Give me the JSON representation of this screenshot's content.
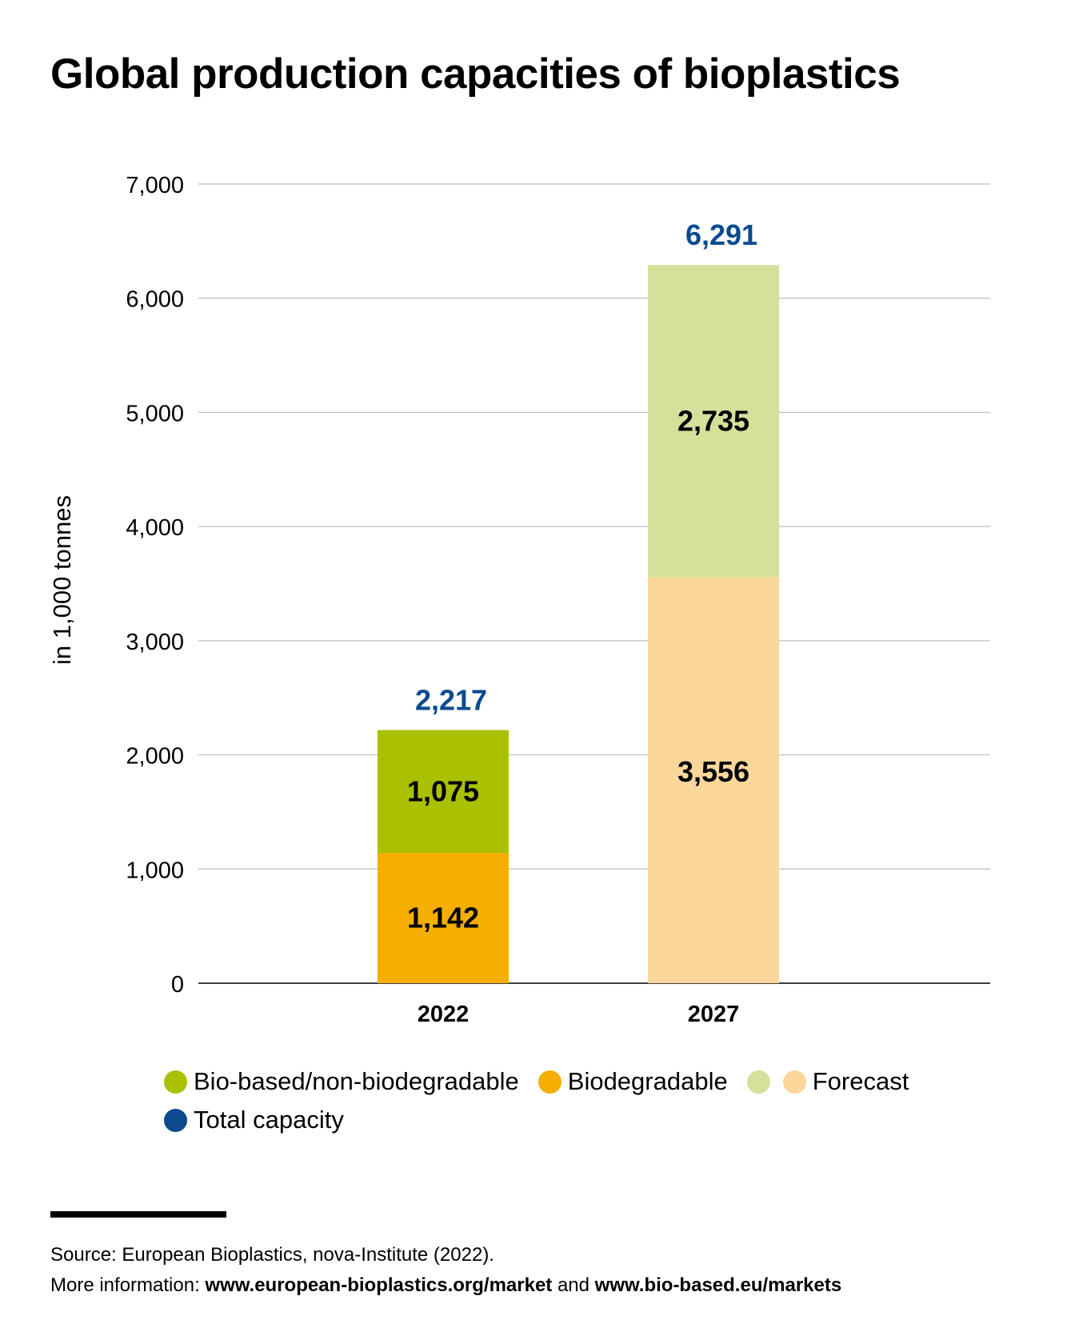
{
  "title": "Global production capacities of bioplastics",
  "chart_data": {
    "type": "bar",
    "stacked": true,
    "title": "Global production capacities of bioplastics",
    "ylabel": "in 1,000 tonnes",
    "xlabel": "",
    "ylim": [
      0,
      7000
    ],
    "yticks": [
      0,
      1000,
      2000,
      3000,
      4000,
      5000,
      6000,
      7000
    ],
    "ytick_labels": [
      "0",
      "1,000",
      "2,000",
      "3,000",
      "4,000",
      "5,000",
      "6,000",
      "7,000"
    ],
    "grid": true,
    "categories": [
      "2022",
      "2027"
    ],
    "series": [
      {
        "name": "Biodegradable",
        "values": [
          1142,
          3556
        ],
        "labels": [
          "1,142",
          "3,556"
        ],
        "colors": [
          "#f6ae00",
          "#fbd79b"
        ]
      },
      {
        "name": "Bio-based/non-biodegradable",
        "values": [
          1075,
          2735
        ],
        "labels": [
          "1,075",
          "2,735"
        ],
        "colors": [
          "#a9c100",
          "#d6e09b"
        ]
      }
    ],
    "totals": [
      2217,
      6291
    ],
    "total_labels": [
      "2,217",
      "6,291"
    ],
    "total_color": "#0b4a8f",
    "legend_placement": "bottom"
  },
  "legend": {
    "bio_based": {
      "label": "Bio-based/non-biodegradable",
      "color": "#a9c100"
    },
    "biodegradable": {
      "label": "Biodegradable",
      "color": "#f6ae00"
    },
    "forecast": {
      "label": "Forecast",
      "colors": [
        "#d6e09b",
        "#fbd79b"
      ]
    },
    "total": {
      "label": "Total capacity",
      "color": "#0b4a8f"
    }
  },
  "source": {
    "line1": "Source: European Bioplastics, nova-Institute (2022).",
    "line2_prefix": "More information: ",
    "link1": "www.european-bioplastics.org/market",
    "line2_and": " and ",
    "link2": "www.bio-based.eu/markets"
  }
}
